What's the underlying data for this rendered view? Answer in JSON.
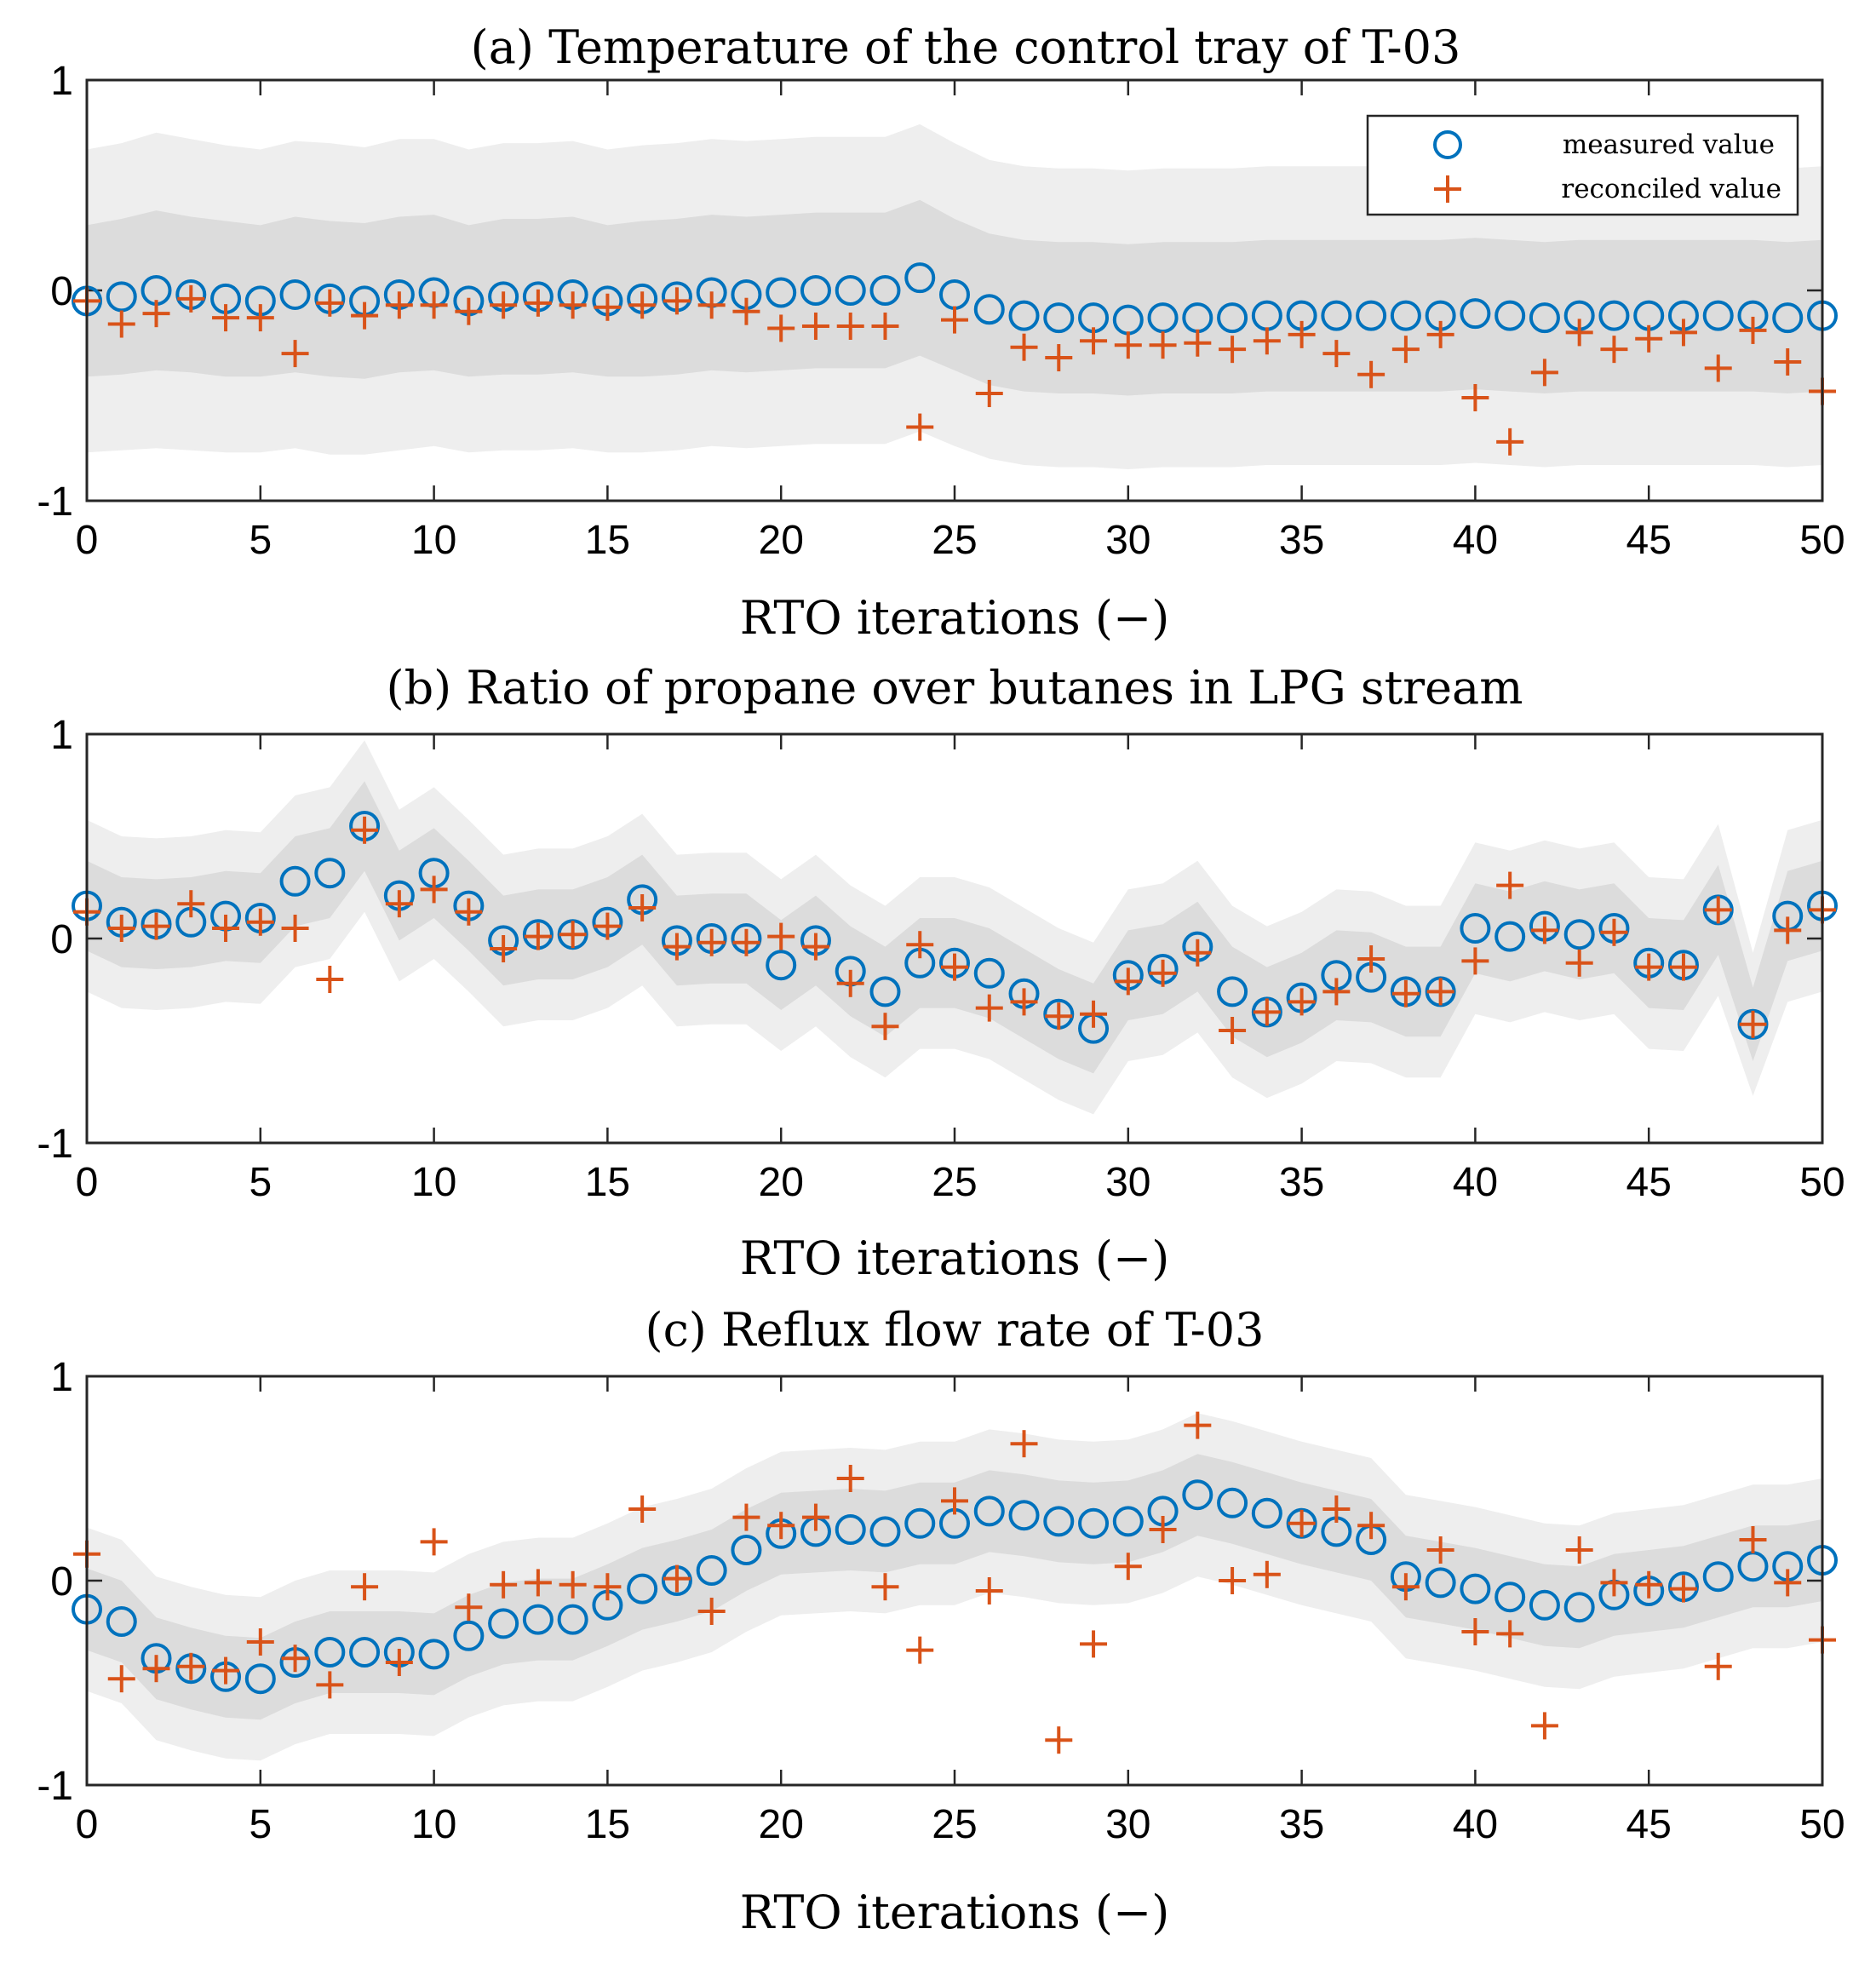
{
  "colors": {
    "measured": "#0072BD",
    "reconciled": "#D95319",
    "band_outer": "#eeeeee",
    "band_inner": "#dcdcdc"
  },
  "legend": {
    "measured_label": "measured value",
    "reconciled_label": "reconciled value"
  },
  "chart_data": [
    {
      "type": "scatter",
      "title": "(a) Temperature of the control tray of T-03",
      "xlabel": "RTO iterations (−)",
      "ylabel": "",
      "xlim": [
        0,
        50
      ],
      "ylim": [
        -1,
        1
      ],
      "xticks": [
        0,
        5,
        10,
        15,
        20,
        25,
        30,
        35,
        40,
        45,
        50
      ],
      "yticks": [
        -1,
        0,
        1
      ],
      "legend": "top-right",
      "band_outer_half_width": [
        0.72,
        0.73,
        0.75,
        0.74,
        0.73,
        0.72,
        0.73,
        0.74,
        0.73,
        0.74,
        0.73,
        0.72,
        0.73,
        0.73,
        0.73,
        0.72,
        0.73,
        0.73,
        0.73,
        0.73,
        0.73,
        0.73,
        0.73,
        0.73,
        0.73,
        0.72,
        0.71,
        0.71,
        0.71,
        0.71,
        0.71,
        0.71,
        0.71,
        0.71,
        0.71,
        0.71,
        0.71,
        0.71,
        0.71,
        0.71,
        0.71,
        0.71,
        0.71,
        0.71,
        0.71,
        0.71,
        0.71,
        0.71,
        0.71,
        0.71,
        0.71
      ],
      "band_inner_half_width": [
        0.36,
        0.37,
        0.38,
        0.37,
        0.37,
        0.36,
        0.37,
        0.37,
        0.37,
        0.37,
        0.37,
        0.36,
        0.37,
        0.37,
        0.37,
        0.36,
        0.37,
        0.37,
        0.37,
        0.37,
        0.37,
        0.37,
        0.37,
        0.37,
        0.37,
        0.36,
        0.36,
        0.36,
        0.36,
        0.36,
        0.36,
        0.36,
        0.36,
        0.36,
        0.36,
        0.36,
        0.36,
        0.36,
        0.36,
        0.36,
        0.36,
        0.36,
        0.36,
        0.36,
        0.36,
        0.36,
        0.36,
        0.36,
        0.36,
        0.36,
        0.36
      ],
      "series": [
        {
          "name": "measured value",
          "x": [
            0,
            1,
            2,
            3,
            4,
            5,
            6,
            7,
            8,
            9,
            10,
            11,
            12,
            13,
            14,
            15,
            16,
            17,
            18,
            19,
            20,
            21,
            22,
            23,
            24,
            25,
            26,
            27,
            28,
            29,
            30,
            31,
            32,
            33,
            34,
            35,
            36,
            37,
            38,
            39,
            40,
            41,
            42,
            43,
            44,
            45,
            46,
            47,
            48,
            49,
            50
          ],
          "y": [
            -0.05,
            -0.03,
            0.0,
            -0.02,
            -0.04,
            -0.05,
            -0.02,
            -0.04,
            -0.05,
            -0.02,
            -0.01,
            -0.05,
            -0.03,
            -0.03,
            -0.02,
            -0.05,
            -0.04,
            -0.03,
            -0.01,
            -0.02,
            -0.01,
            0.0,
            0.0,
            0.0,
            0.06,
            -0.02,
            -0.09,
            -0.12,
            -0.13,
            -0.13,
            -0.14,
            -0.13,
            -0.13,
            -0.13,
            -0.12,
            -0.12,
            -0.12,
            -0.12,
            -0.12,
            -0.12,
            -0.11,
            -0.12,
            -0.13,
            -0.12,
            -0.12,
            -0.12,
            -0.12,
            -0.12,
            -0.12,
            -0.13,
            -0.12
          ]
        },
        {
          "name": "reconciled value",
          "x": [
            0,
            1,
            2,
            3,
            4,
            5,
            6,
            7,
            8,
            9,
            10,
            11,
            12,
            13,
            14,
            15,
            16,
            17,
            18,
            19,
            20,
            21,
            22,
            23,
            24,
            25,
            26,
            27,
            28,
            29,
            30,
            31,
            32,
            33,
            34,
            35,
            36,
            37,
            38,
            39,
            40,
            41,
            42,
            43,
            44,
            45,
            46,
            47,
            48,
            49,
            50
          ],
          "y": [
            -0.05,
            -0.16,
            -0.11,
            -0.04,
            -0.13,
            -0.13,
            -0.3,
            -0.06,
            -0.12,
            -0.07,
            -0.07,
            -0.1,
            -0.07,
            -0.06,
            -0.07,
            -0.08,
            -0.07,
            -0.05,
            -0.07,
            -0.1,
            -0.18,
            -0.17,
            -0.17,
            -0.17,
            -0.65,
            -0.14,
            -0.49,
            -0.27,
            -0.32,
            -0.24,
            -0.26,
            -0.26,
            -0.25,
            -0.28,
            -0.24,
            -0.21,
            -0.3,
            -0.4,
            -0.28,
            -0.21,
            -0.51,
            -0.72,
            -0.39,
            -0.2,
            -0.28,
            -0.23,
            -0.2,
            -0.37,
            -0.19,
            -0.34,
            -0.48
          ]
        }
      ]
    },
    {
      "type": "scatter",
      "title": "(b) Ratio of propane over butanes in LPG stream",
      "xlabel": "RTO iterations (−)",
      "ylabel": "",
      "xlim": [
        0,
        50
      ],
      "ylim": [
        -1,
        1
      ],
      "xticks": [
        0,
        5,
        10,
        15,
        20,
        25,
        30,
        35,
        40,
        45,
        50
      ],
      "yticks": [
        -1,
        0,
        1
      ],
      "band_outer_half_width": [
        0.42,
        0.42,
        0.42,
        0.42,
        0.42,
        0.42,
        0.42,
        0.42,
        0.42,
        0.42,
        0.42,
        0.42,
        0.42,
        0.42,
        0.42,
        0.42,
        0.42,
        0.42,
        0.42,
        0.42,
        0.42,
        0.42,
        0.42,
        0.42,
        0.42,
        0.42,
        0.42,
        0.42,
        0.42,
        0.42,
        0.42,
        0.42,
        0.42,
        0.42,
        0.42,
        0.42,
        0.42,
        0.42,
        0.42,
        0.42,
        0.42,
        0.42,
        0.42,
        0.42,
        0.42,
        0.42,
        0.42,
        0.42,
        0.35,
        0.42,
        0.42
      ],
      "band_inner_half_width": [
        0.22,
        0.22,
        0.22,
        0.22,
        0.22,
        0.22,
        0.22,
        0.22,
        0.22,
        0.22,
        0.22,
        0.22,
        0.22,
        0.22,
        0.22,
        0.22,
        0.22,
        0.22,
        0.22,
        0.22,
        0.22,
        0.22,
        0.22,
        0.22,
        0.22,
        0.22,
        0.22,
        0.22,
        0.22,
        0.22,
        0.22,
        0.22,
        0.22,
        0.22,
        0.22,
        0.22,
        0.22,
        0.22,
        0.22,
        0.22,
        0.22,
        0.22,
        0.22,
        0.22,
        0.22,
        0.22,
        0.22,
        0.22,
        0.18,
        0.22,
        0.22
      ],
      "series": [
        {
          "name": "measured value",
          "x": [
            0,
            1,
            2,
            3,
            4,
            5,
            6,
            7,
            8,
            9,
            10,
            11,
            12,
            13,
            14,
            15,
            16,
            17,
            18,
            19,
            20,
            21,
            22,
            23,
            24,
            25,
            26,
            27,
            28,
            29,
            30,
            31,
            32,
            33,
            34,
            35,
            36,
            37,
            38,
            39,
            40,
            41,
            42,
            43,
            44,
            45,
            46,
            47,
            48,
            49,
            50
          ],
          "y": [
            0.16,
            0.08,
            0.07,
            0.08,
            0.11,
            0.1,
            0.28,
            0.32,
            0.55,
            0.21,
            0.32,
            0.16,
            -0.01,
            0.02,
            0.02,
            0.08,
            0.19,
            -0.01,
            0.0,
            0.0,
            -0.13,
            -0.01,
            -0.16,
            -0.26,
            -0.12,
            -0.12,
            -0.17,
            -0.27,
            -0.37,
            -0.44,
            -0.18,
            -0.15,
            -0.04,
            -0.26,
            -0.36,
            -0.29,
            -0.18,
            -0.19,
            -0.26,
            -0.26,
            0.05,
            0.01,
            0.06,
            0.02,
            0.05,
            -0.12,
            -0.13,
            0.14,
            -0.42,
            0.11,
            0.16
          ]
        },
        {
          "name": "reconciled value",
          "x": [
            0,
            1,
            2,
            3,
            4,
            5,
            6,
            7,
            8,
            9,
            10,
            11,
            12,
            13,
            14,
            15,
            16,
            17,
            18,
            19,
            20,
            21,
            22,
            23,
            24,
            25,
            26,
            27,
            28,
            29,
            30,
            31,
            32,
            33,
            34,
            35,
            36,
            37,
            38,
            39,
            40,
            41,
            42,
            43,
            44,
            45,
            46,
            47,
            48,
            49,
            50
          ],
          "y": [
            0.13,
            0.05,
            0.06,
            0.17,
            0.05,
            0.08,
            0.05,
            -0.2,
            0.53,
            0.17,
            0.24,
            0.13,
            -0.05,
            0.01,
            0.02,
            0.06,
            0.15,
            -0.04,
            -0.02,
            -0.02,
            0.01,
            -0.04,
            -0.22,
            -0.43,
            -0.03,
            -0.14,
            -0.34,
            -0.31,
            -0.38,
            -0.37,
            -0.21,
            -0.17,
            -0.07,
            -0.45,
            -0.36,
            -0.31,
            -0.26,
            -0.1,
            -0.27,
            -0.26,
            -0.11,
            0.26,
            0.04,
            -0.12,
            0.03,
            -0.14,
            -0.14,
            0.14,
            -0.42,
            0.04,
            0.14
          ]
        }
      ]
    },
    {
      "type": "scatter",
      "title": "(c) Reflux flow rate of T-03",
      "xlabel": "RTO iterations (−)",
      "ylabel": "",
      "xlim": [
        0,
        50
      ],
      "ylim": [
        -1,
        1
      ],
      "xticks": [
        0,
        5,
        10,
        15,
        20,
        25,
        30,
        35,
        40,
        45,
        50
      ],
      "yticks": [
        -1,
        0,
        1
      ],
      "band_outer_half_width": [
        0.4,
        0.4,
        0.4,
        0.4,
        0.4,
        0.4,
        0.4,
        0.4,
        0.4,
        0.4,
        0.4,
        0.4,
        0.4,
        0.4,
        0.4,
        0.4,
        0.4,
        0.4,
        0.4,
        0.4,
        0.4,
        0.4,
        0.4,
        0.4,
        0.4,
        0.4,
        0.4,
        0.4,
        0.4,
        0.4,
        0.4,
        0.4,
        0.4,
        0.4,
        0.4,
        0.4,
        0.4,
        0.4,
        0.4,
        0.4,
        0.4,
        0.4,
        0.4,
        0.4,
        0.4,
        0.4,
        0.4,
        0.4,
        0.4,
        0.4,
        0.4
      ],
      "band_inner_half_width": [
        0.2,
        0.2,
        0.2,
        0.2,
        0.2,
        0.2,
        0.2,
        0.2,
        0.2,
        0.2,
        0.2,
        0.2,
        0.2,
        0.2,
        0.2,
        0.2,
        0.2,
        0.2,
        0.2,
        0.2,
        0.2,
        0.2,
        0.2,
        0.2,
        0.2,
        0.2,
        0.2,
        0.2,
        0.2,
        0.2,
        0.2,
        0.2,
        0.2,
        0.2,
        0.2,
        0.2,
        0.2,
        0.2,
        0.2,
        0.2,
        0.2,
        0.2,
        0.2,
        0.2,
        0.2,
        0.2,
        0.2,
        0.2,
        0.2,
        0.2,
        0.2
      ],
      "series": [
        {
          "name": "measured value",
          "x": [
            0,
            1,
            2,
            3,
            4,
            5,
            6,
            7,
            8,
            9,
            10,
            11,
            12,
            13,
            14,
            15,
            16,
            17,
            18,
            19,
            20,
            21,
            22,
            23,
            24,
            25,
            26,
            27,
            28,
            29,
            30,
            31,
            32,
            33,
            34,
            35,
            36,
            37,
            38,
            39,
            40,
            41,
            42,
            43,
            44,
            45,
            46,
            47,
            48,
            49,
            50
          ],
          "y": [
            -0.14,
            -0.2,
            -0.38,
            -0.43,
            -0.47,
            -0.48,
            -0.4,
            -0.35,
            -0.35,
            -0.35,
            -0.36,
            -0.27,
            -0.21,
            -0.19,
            -0.19,
            -0.12,
            -0.04,
            0.0,
            0.05,
            0.15,
            0.23,
            0.24,
            0.25,
            0.24,
            0.28,
            0.28,
            0.34,
            0.32,
            0.29,
            0.28,
            0.29,
            0.34,
            0.42,
            0.38,
            0.33,
            0.28,
            0.24,
            0.2,
            0.02,
            -0.01,
            -0.04,
            -0.08,
            -0.12,
            -0.13,
            -0.07,
            -0.05,
            -0.03,
            0.02,
            0.07,
            0.07,
            0.1
          ]
        },
        {
          "name": "reconciled value",
          "x": [
            0,
            1,
            2,
            3,
            4,
            5,
            6,
            7,
            8,
            9,
            10,
            11,
            12,
            13,
            14,
            15,
            16,
            17,
            18,
            19,
            20,
            21,
            22,
            23,
            24,
            25,
            26,
            27,
            28,
            29,
            30,
            31,
            32,
            33,
            34,
            35,
            36,
            37,
            38,
            39,
            40,
            41,
            42,
            43,
            44,
            45,
            46,
            47,
            48,
            49,
            50
          ],
          "y": [
            0.13,
            -0.48,
            -0.43,
            -0.42,
            -0.44,
            -0.3,
            -0.38,
            -0.51,
            -0.03,
            -0.4,
            0.19,
            -0.13,
            -0.02,
            -0.01,
            -0.02,
            -0.03,
            0.35,
            0.01,
            -0.15,
            0.31,
            0.27,
            0.31,
            0.5,
            -0.03,
            -0.34,
            0.39,
            -0.05,
            0.67,
            -0.78,
            -0.31,
            0.07,
            0.25,
            0.76,
            0.0,
            0.03,
            0.28,
            0.35,
            0.27,
            -0.03,
            0.15,
            -0.25,
            -0.26,
            -0.71,
            0.15,
            -0.01,
            -0.02,
            -0.04,
            -0.42,
            0.2,
            -0.01,
            -0.29
          ]
        }
      ]
    }
  ]
}
